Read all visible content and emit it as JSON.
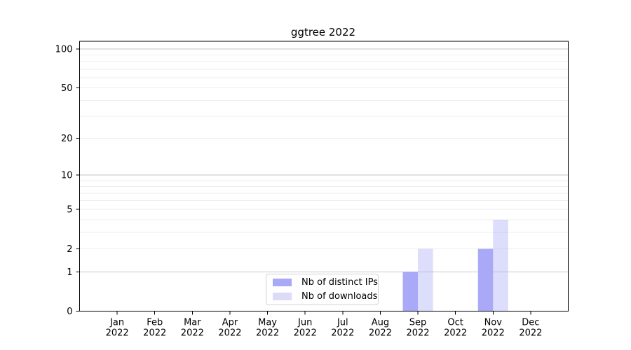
{
  "chart_data": {
    "type": "bar",
    "title": "ggtree 2022",
    "categories": [
      {
        "label": "Jan",
        "sublabel": "2022"
      },
      {
        "label": "Feb",
        "sublabel": "2022"
      },
      {
        "label": "Mar",
        "sublabel": "2022"
      },
      {
        "label": "Apr",
        "sublabel": "2022"
      },
      {
        "label": "May",
        "sublabel": "2022"
      },
      {
        "label": "Jun",
        "sublabel": "2022"
      },
      {
        "label": "Jul",
        "sublabel": "2022"
      },
      {
        "label": "Aug",
        "sublabel": "2022"
      },
      {
        "label": "Sep",
        "sublabel": "2022"
      },
      {
        "label": "Oct",
        "sublabel": "2022"
      },
      {
        "label": "Nov",
        "sublabel": "2022"
      },
      {
        "label": "Dec",
        "sublabel": "2022"
      }
    ],
    "series": [
      {
        "name": "Nb of distinct IPs",
        "color": "#a9a9f7",
        "bar_fill": "#a9a9f7",
        "values": [
          0,
          0,
          0,
          0,
          0,
          0,
          0,
          0,
          1,
          0,
          2,
          0
        ]
      },
      {
        "name": "Nb of downloads",
        "color": "#dcdcf8",
        "bar_fill": "rgba(169,169,247,0.40)",
        "values": [
          0,
          0,
          0,
          0,
          0,
          0,
          0,
          0,
          2,
          0,
          4,
          0
        ]
      }
    ],
    "xlabel": "",
    "ylabel": "",
    "yscale": "log1p",
    "ylim": [
      0,
      115
    ],
    "yticks": [
      0,
      1,
      2,
      5,
      10,
      20,
      50,
      100
    ],
    "major_gridlines": [
      1,
      10,
      100
    ],
    "minor_gridlines": [
      2,
      3,
      4,
      5,
      6,
      7,
      8,
      9,
      20,
      30,
      40,
      50,
      60,
      70,
      80,
      90
    ],
    "grid": "on",
    "legend_position": "lower center",
    "colors": {
      "major_grid": "#c6c6c6",
      "minor_grid": "#ededed",
      "spine": "#000000",
      "text": "#000000",
      "legend_border": "#d2d2d2",
      "background": "#ffffff"
    }
  }
}
